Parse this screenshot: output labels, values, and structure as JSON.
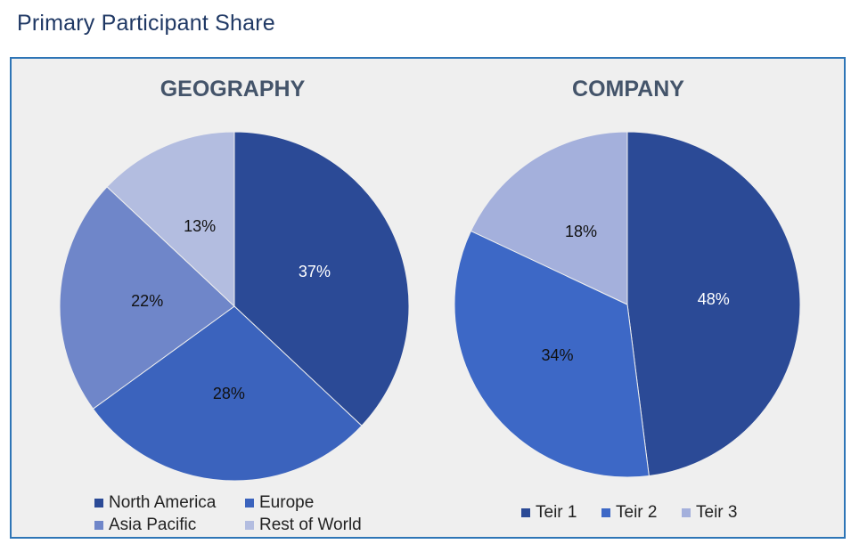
{
  "page_title": "Primary Participant Share",
  "chart_data": [
    {
      "type": "pie",
      "title": "GEOGRAPHY",
      "categories": [
        "North America",
        "Europe",
        "Asia Pacific",
        "Rest of World"
      ],
      "values": [
        37,
        28,
        22,
        13
      ],
      "labels": [
        "37%",
        "28%",
        "22%",
        "13%"
      ],
      "colors": [
        "#2b4a96",
        "#3b63bd",
        "#6f86c9",
        "#b3bde0"
      ],
      "label_colors": [
        "#ffffff",
        "#111111",
        "#111111",
        "#111111"
      ],
      "legend_position": "bottom"
    },
    {
      "type": "pie",
      "title": "COMPANY",
      "categories": [
        "Teir 1",
        "Teir 2",
        "Teir 3"
      ],
      "values": [
        48,
        34,
        18
      ],
      "labels": [
        "48%",
        "34%",
        "18%"
      ],
      "colors": [
        "#2b4a96",
        "#3d68c6",
        "#a4b0dc"
      ],
      "label_colors": [
        "#ffffff",
        "#111111",
        "#111111"
      ],
      "legend_position": "bottom"
    }
  ]
}
